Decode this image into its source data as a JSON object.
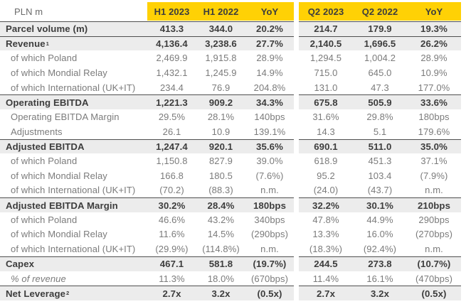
{
  "colors": {
    "brand_yellow": "#FFD105",
    "section_row_bg": "#ECECEC",
    "section_border": "#4F4F4F",
    "text_dark": "#3D3D3D",
    "text_gray": "#7B7B7B"
  },
  "table": {
    "unit_label": "PLN m",
    "column_groups": [
      {
        "columns": [
          "H1 2023",
          "H1 2022",
          "YoY"
        ]
      },
      {
        "columns": [
          "Q2 2023",
          "Q2 2022",
          "YoY"
        ]
      }
    ],
    "rows": [
      {
        "label": "Parcel volume (m)",
        "type": "section",
        "values": [
          "413.3",
          "344.0",
          "20.2%",
          "214.7",
          "179.9",
          "19.3%"
        ]
      },
      {
        "label": "Revenue",
        "sup": "1",
        "type": "section",
        "values": [
          "4,136.4",
          "3,238.6",
          "27.7%",
          "2,140.5",
          "1,696.5",
          "26.2%"
        ]
      },
      {
        "label": "of which Poland",
        "type": "sub",
        "values": [
          "2,469.9",
          "1,915.8",
          "28.9%",
          "1,294.5",
          "1,004.2",
          "28.9%"
        ]
      },
      {
        "label": "of which Mondial Relay",
        "type": "sub",
        "values": [
          "1,432.1",
          "1,245.9",
          "14.9%",
          "715.0",
          "645.0",
          "10.9%"
        ]
      },
      {
        "label": "of which International (UK+IT)",
        "type": "sub",
        "values": [
          "234.4",
          "76.9",
          "204.8%",
          "131.0",
          "47.3",
          "177.0%"
        ]
      },
      {
        "label": "Operating EBITDA",
        "type": "section",
        "values": [
          "1,221.3",
          "909.2",
          "34.3%",
          "675.8",
          "505.9",
          "33.6%"
        ]
      },
      {
        "label": "Operating EBITDA Margin",
        "type": "sub",
        "values": [
          "29.5%",
          "28.1%",
          "140bps",
          "31.6%",
          "29.8%",
          "180bps"
        ]
      },
      {
        "label": "Adjustments",
        "type": "sub",
        "values": [
          "26.1",
          "10.9",
          "139.1%",
          "14.3",
          "5.1",
          "179.6%"
        ]
      },
      {
        "label": "Adjusted EBITDA",
        "type": "section",
        "values": [
          "1,247.4",
          "920.1",
          "35.6%",
          "690.1",
          "511.0",
          "35.0%"
        ]
      },
      {
        "label": "of which Poland",
        "type": "sub",
        "values": [
          "1,150.8",
          "827.9",
          "39.0%",
          "618.9",
          "451.3",
          "37.1%"
        ]
      },
      {
        "label": "of which Mondial Relay",
        "type": "sub",
        "values": [
          "166.8",
          "180.5",
          "(7.6%)",
          "95.2",
          "103.4",
          "(7.9%)"
        ]
      },
      {
        "label": "of which International (UK+IT)",
        "type": "sub",
        "values": [
          "(70.2)",
          "(88.3)",
          "n.m.",
          "(24.0)",
          "(43.7)",
          "n.m."
        ]
      },
      {
        "label": "Adjusted EBITDA Margin",
        "type": "section",
        "values": [
          "30.2%",
          "28.4%",
          "180bps",
          "32.2%",
          "30.1%",
          "210bps"
        ]
      },
      {
        "label": "of which Poland",
        "type": "sub",
        "values": [
          "46.6%",
          "43.2%",
          "340bps",
          "47.8%",
          "44.9%",
          "290bps"
        ]
      },
      {
        "label": "of which Mondial Relay",
        "type": "sub",
        "values": [
          "11.6%",
          "14.5%",
          "(290bps)",
          "13.3%",
          "16.0%",
          "(270bps)"
        ]
      },
      {
        "label": "of which International (UK+IT)",
        "type": "sub",
        "values": [
          "(29.9%)",
          "(114.8%)",
          "n.m.",
          "(18.3%)",
          "(92.4%)",
          "n.m."
        ]
      },
      {
        "label": "Capex",
        "type": "section",
        "values": [
          "467.1",
          "581.8",
          "(19.7%)",
          "244.5",
          "273.8",
          "(10.7%)"
        ]
      },
      {
        "label": "% of revenue",
        "type": "sub-italic",
        "values": [
          "11.3%",
          "18.0%",
          "(670bps)",
          "11.4%",
          "16.1%",
          "(470bps)"
        ]
      },
      {
        "label": "Net Leverage",
        "sup": "2",
        "type": "section",
        "values": [
          "2.7x",
          "3.2x",
          "(0.5x)",
          "2.7x",
          "3.2x",
          "(0.5x)"
        ]
      }
    ]
  }
}
